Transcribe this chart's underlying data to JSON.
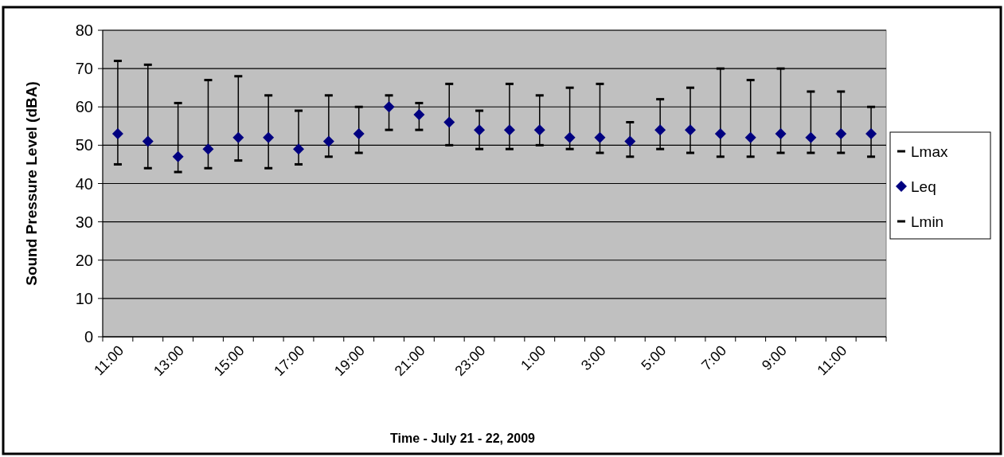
{
  "chart_data": {
    "type": "scatter",
    "ylabel": "Sound Pressure Level (dBA)",
    "xlabel": "Time - July 21 - 22, 2009",
    "categories": [
      "11:00",
      null,
      "13:00",
      null,
      "15:00",
      null,
      "17:00",
      null,
      "19:00",
      null,
      "21:00",
      null,
      "23:00",
      null,
      "1:00",
      null,
      "3:00",
      null,
      "5:00",
      null,
      "7:00",
      null,
      "9:00",
      null,
      "11:00",
      null
    ],
    "series": [
      {
        "name": "Lmax",
        "color": "#000000",
        "values": [
          72,
          71,
          61,
          67,
          68,
          63,
          59,
          63,
          60,
          63,
          61,
          66,
          59,
          66,
          63,
          65,
          66,
          56,
          62,
          65,
          70,
          67,
          70,
          64,
          64,
          60
        ]
      },
      {
        "name": "Leq",
        "color": "#000080",
        "marker": "diamond",
        "values": [
          53,
          51,
          47,
          49,
          52,
          52,
          49,
          51,
          53,
          60,
          58,
          56,
          54,
          54,
          54,
          52,
          52,
          51,
          54,
          54,
          53,
          52,
          53,
          52,
          53,
          53
        ]
      },
      {
        "name": "Lmin",
        "color": "#000000",
        "values": [
          45,
          44,
          43,
          44,
          46,
          44,
          45,
          47,
          48,
          54,
          54,
          50,
          49,
          49,
          50,
          49,
          48,
          47,
          49,
          48,
          47,
          47,
          48,
          48,
          48,
          47
        ]
      }
    ],
    "ylim": [
      0,
      80
    ],
    "yticks": [
      0,
      10,
      20,
      30,
      40,
      50,
      60,
      70,
      80
    ],
    "grid": "y",
    "legend": "right"
  }
}
